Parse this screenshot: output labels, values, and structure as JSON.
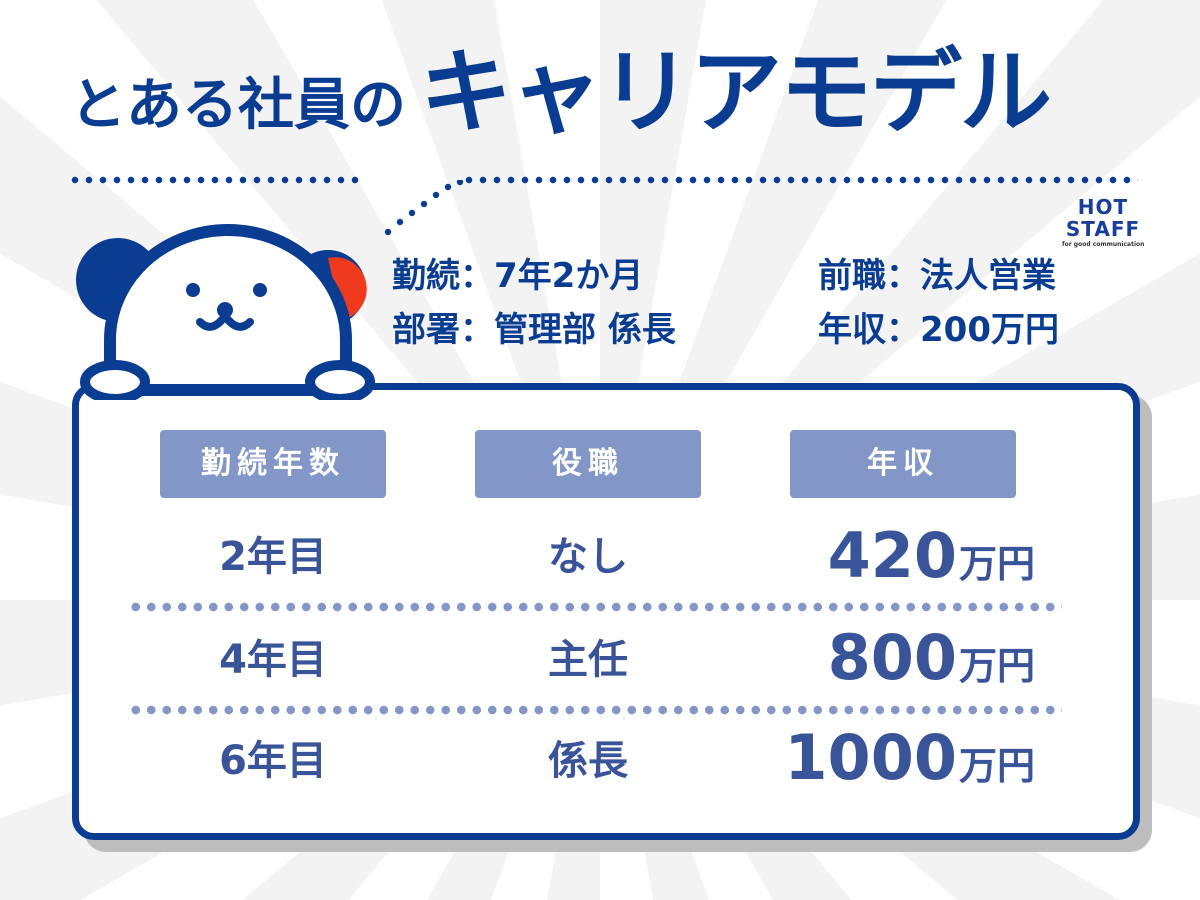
{
  "title": {
    "prefix": "とある社員の",
    "main": "キャリアモデル"
  },
  "logo": {
    "line1": "HOT",
    "line2": "STAFF",
    "tagline": "for good communication"
  },
  "profile": {
    "tenure": "勤続：7年2か月",
    "previous_job": "前職：法人営業",
    "department": "部署：管理部 係長",
    "income": "年収：200万円"
  },
  "table": {
    "headers": [
      "勤続年数",
      "役職",
      "年収"
    ],
    "rows": [
      {
        "year": "2年目",
        "position": "なし",
        "salary": "420",
        "unit": "万円"
      },
      {
        "year": "4年目",
        "position": "主任",
        "salary": "800",
        "unit": "万円"
      },
      {
        "year": "6年目",
        "position": "係長",
        "salary": "1000",
        "unit": "万円"
      }
    ]
  },
  "colors": {
    "primary": "#0a3d91",
    "header": "#8396c8",
    "row_text": "#3a5499",
    "accent": "#f03a1e"
  },
  "icons": {
    "mascot": "dog-mascot-icon"
  }
}
